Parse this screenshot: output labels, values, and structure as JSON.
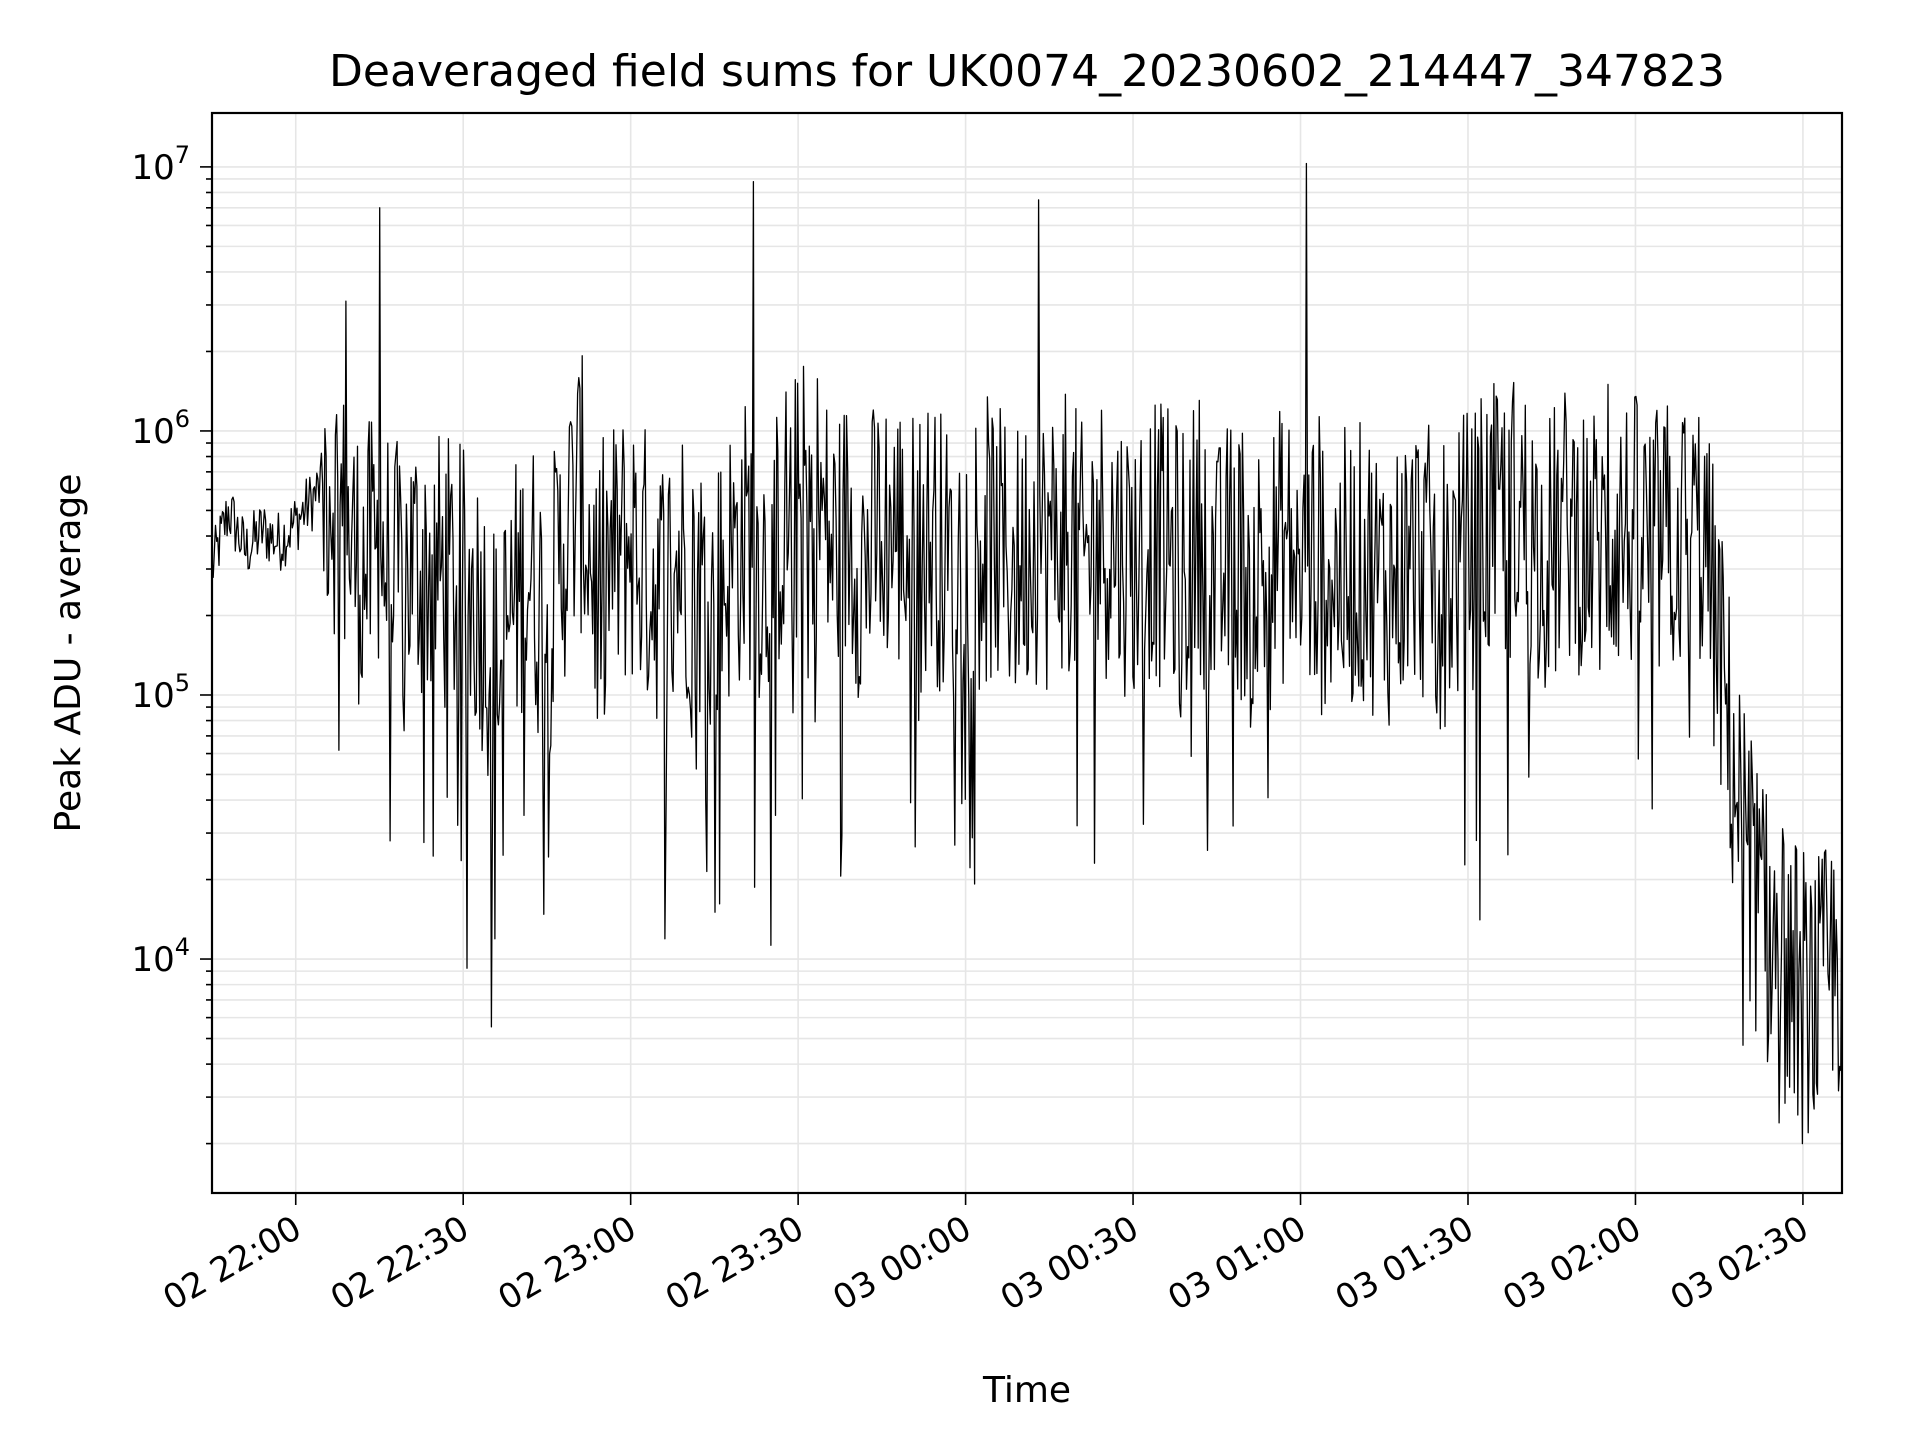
{
  "chart_data": {
    "type": "line",
    "title": "Deaveraged field sums for UK0074_20230602_214447_347823",
    "xlabel": "Time",
    "ylabel": "Peak ADU - average",
    "yscale": "log",
    "xlim": [
      "2023-06-02 21:45",
      "2023-06-03 02:37"
    ],
    "ylim": [
      1300,
      16000000
    ],
    "grid": true,
    "line_color": "#000000",
    "grid_color": "#e6e6e6",
    "x_ticks": [
      {
        "label": "02 22:00",
        "value": "2023-06-02 22:00"
      },
      {
        "label": "02 22:30",
        "value": "2023-06-02 22:30"
      },
      {
        "label": "02 23:00",
        "value": "2023-06-02 23:00"
      },
      {
        "label": "02 23:30",
        "value": "2023-06-02 23:30"
      },
      {
        "label": "03 00:00",
        "value": "2023-06-03 00:00"
      },
      {
        "label": "03 00:30",
        "value": "2023-06-03 00:30"
      },
      {
        "label": "03 01:00",
        "value": "2023-06-03 01:00"
      },
      {
        "label": "03 01:30",
        "value": "2023-06-03 01:30"
      },
      {
        "label": "03 02:00",
        "value": "2023-06-03 02:00"
      },
      {
        "label": "03 02:30",
        "value": "2023-06-03 02:30"
      }
    ],
    "y_ticks": [
      {
        "base": "10",
        "exp": "4",
        "value": 10000
      },
      {
        "base": "10",
        "exp": "5",
        "value": 100000
      },
      {
        "base": "10",
        "exp": "6",
        "value": 1000000
      },
      {
        "base": "10",
        "exp": "7",
        "value": 10000000
      }
    ],
    "series": [
      {
        "x": [
          "2023-06-02 21:45",
          "2023-06-02 21:48",
          "2023-06-02 21:51",
          "2023-06-02 21:54",
          "2023-06-02 21:57",
          "2023-06-02 22:00",
          "2023-06-02 22:03",
          "2023-06-02 22:06",
          "2023-06-02 22:09",
          "2023-06-02 22:12",
          "2023-06-02 22:15",
          "2023-06-02 22:18",
          "2023-06-02 22:21",
          "2023-06-02 22:24",
          "2023-06-02 22:27",
          "2023-06-02 22:30",
          "2023-06-02 22:33",
          "2023-06-02 22:36",
          "2023-06-02 22:39",
          "2023-06-02 22:42",
          "2023-06-02 22:45",
          "2023-06-02 22:48",
          "2023-06-02 22:51",
          "2023-06-02 22:54",
          "2023-06-02 22:57",
          "2023-06-02 23:00",
          "2023-06-02 23:03",
          "2023-06-02 23:06",
          "2023-06-02 23:09",
          "2023-06-02 23:12",
          "2023-06-02 23:15",
          "2023-06-02 23:18",
          "2023-06-02 23:21",
          "2023-06-02 23:24",
          "2023-06-02 23:27",
          "2023-06-02 23:30",
          "2023-06-02 23:33",
          "2023-06-02 23:36",
          "2023-06-02 23:39",
          "2023-06-02 23:42",
          "2023-06-02 23:45",
          "2023-06-02 23:48",
          "2023-06-02 23:51",
          "2023-06-02 23:54",
          "2023-06-02 23:57",
          "2023-06-03 00:00",
          "2023-06-03 00:03",
          "2023-06-03 00:06",
          "2023-06-03 00:09",
          "2023-06-03 00:12",
          "2023-06-03 00:15",
          "2023-06-03 00:18",
          "2023-06-03 00:21",
          "2023-06-03 00:24",
          "2023-06-03 00:27",
          "2023-06-03 00:30",
          "2023-06-03 00:33",
          "2023-06-03 00:36",
          "2023-06-03 00:39",
          "2023-06-03 00:42",
          "2023-06-03 00:45",
          "2023-06-03 00:48",
          "2023-06-03 00:51",
          "2023-06-03 00:54",
          "2023-06-03 00:57",
          "2023-06-03 01:00",
          "2023-06-03 01:03",
          "2023-06-03 01:06",
          "2023-06-03 01:09",
          "2023-06-03 01:12",
          "2023-06-03 01:15",
          "2023-06-03 01:18",
          "2023-06-03 01:21",
          "2023-06-03 01:24",
          "2023-06-03 01:27",
          "2023-06-03 01:30",
          "2023-06-03 01:33",
          "2023-06-03 01:36",
          "2023-06-03 01:39",
          "2023-06-03 01:42",
          "2023-06-03 01:45",
          "2023-06-03 01:48",
          "2023-06-03 01:51",
          "2023-06-03 01:54",
          "2023-06-03 01:57",
          "2023-06-03 02:00",
          "2023-06-03 02:03",
          "2023-06-03 02:06",
          "2023-06-03 02:09",
          "2023-06-03 02:12",
          "2023-06-03 02:15",
          "2023-06-03 02:18",
          "2023-06-03 02:21",
          "2023-06-03 02:24",
          "2023-06-03 02:27",
          "2023-06-03 02:30",
          "2023-06-03 02:33",
          "2023-06-03 02:36"
        ],
        "values": [
          300000,
          500000,
          350000,
          420000,
          380000,
          450000,
          550000,
          700000,
          400000,
          300000,
          350000,
          260000,
          320000,
          300000,
          280000,
          250000,
          230000,
          120000,
          220000,
          300000,
          180000,
          380000,
          600000,
          250000,
          320000,
          380000,
          300000,
          250000,
          340000,
          280000,
          220000,
          330000,
          400000,
          300000,
          450000,
          500000,
          600000,
          350000,
          420000,
          300000,
          450000,
          400000,
          350000,
          420000,
          300000,
          380000,
          420000,
          350000,
          300000,
          400000,
          350000,
          450000,
          300000,
          420000,
          380000,
          320000,
          400000,
          350000,
          300000,
          420000,
          250000,
          350000,
          300000,
          280000,
          380000,
          300000,
          350000,
          280000,
          300000,
          320000,
          250000,
          300000,
          350000,
          280000,
          300000,
          350000,
          400000,
          450000,
          500000,
          380000,
          350000,
          450000,
          400000,
          350000,
          420000,
          400000,
          350000,
          380000,
          400000,
          420000,
          150000,
          45000,
          20000,
          12000,
          9000,
          8000,
          7000,
          10000
        ],
        "spikes": [
          {
            "x": "2023-06-02 22:09",
            "y": 3100000
          },
          {
            "x": "2023-06-02 22:15",
            "y": 7000000
          },
          {
            "x": "2023-06-02 23:22",
            "y": 8800000
          },
          {
            "x": "2023-06-03 00:13",
            "y": 7500000
          },
          {
            "x": "2023-06-03 01:01",
            "y": 10300000
          },
          {
            "x": "2023-06-03 01:55",
            "y": 1500000
          }
        ],
        "dips": [
          {
            "x": "2023-06-02 22:41",
            "y": 35000
          },
          {
            "x": "2023-06-02 23:26",
            "y": 35000
          },
          {
            "x": "2023-06-02 23:58",
            "y": 27000
          },
          {
            "x": "2023-06-03 00:20",
            "y": 32000
          },
          {
            "x": "2023-06-03 02:30",
            "y": 2000
          }
        ]
      }
    ]
  }
}
